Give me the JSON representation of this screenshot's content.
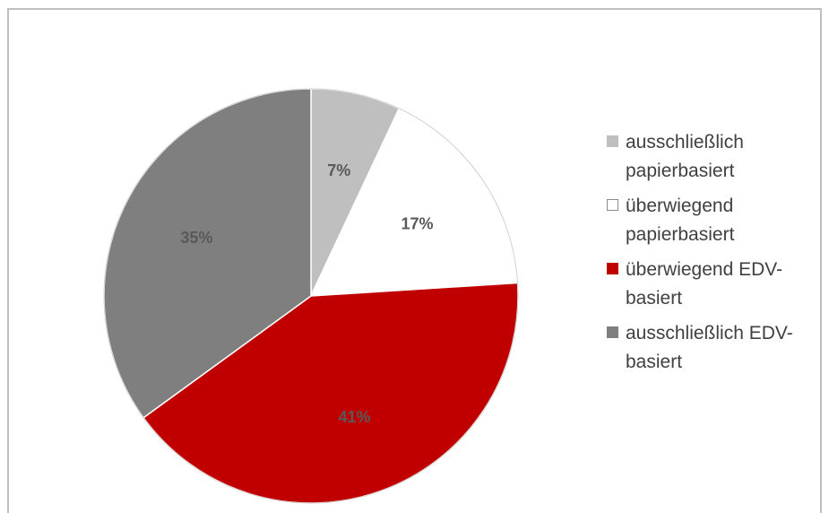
{
  "chart_data": {
    "type": "pie",
    "categories": [
      "ausschließlich papierbasiert",
      "überwiegend papierbasiert",
      "überwiegend EDV-basiert",
      "ausschließlich EDV-basiert"
    ],
    "values": [
      7,
      17,
      41,
      35
    ],
    "data_labels": [
      "7%",
      "17%",
      "41%",
      "35%"
    ],
    "colors": [
      "#bfbfbf",
      "#ffffff",
      "#c00000",
      "#7f7f7f"
    ],
    "legend": {
      "position": "right",
      "entries": [
        {
          "line1": "ausschließlich",
          "line2": "papierbasiert"
        },
        {
          "line1": "überwiegend",
          "line2": "papierbasiert"
        },
        {
          "line1": "überwiegend EDV-",
          "line2": "basiert"
        },
        {
          "line1": "ausschließlich EDV-",
          "line2": "basiert"
        }
      ]
    }
  }
}
